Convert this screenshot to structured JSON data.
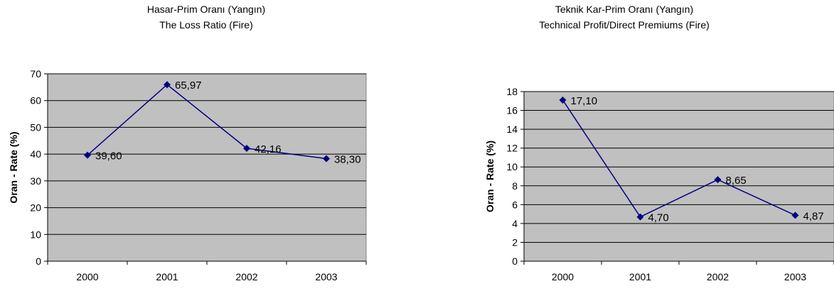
{
  "chart_data": [
    {
      "type": "line",
      "title": "Hasar-Prim Oranı (Yangın)",
      "subtitle": "The Loss Ratio (Fire)",
      "ylabel": "Oran - Rate (%)",
      "xlabel": "",
      "categories": [
        "2000",
        "2001",
        "2002",
        "2003"
      ],
      "yticks": [
        "0",
        "10",
        "20",
        "30",
        "40",
        "50",
        "60",
        "70"
      ],
      "ylim": [
        0,
        70
      ],
      "grid": true,
      "series": [
        {
          "values": [
            39.6,
            65.97,
            42.16,
            38.3
          ],
          "labels": [
            "39,60",
            "65,97",
            "42,16",
            "38,30"
          ]
        }
      ],
      "colors": {
        "plot_bg": "#c0c0c0",
        "line": "#000080",
        "grid": "#000000"
      }
    },
    {
      "type": "line",
      "title": "Teknik Kar-Prim Oranı (Yangın)",
      "subtitle": "Technical Profit/Direct Premiums (Fire)",
      "ylabel": "Oran - Rate (%)",
      "xlabel": "",
      "categories": [
        "2000",
        "2001",
        "2002",
        "2003"
      ],
      "yticks": [
        "0",
        "2",
        "4",
        "6",
        "8",
        "10",
        "12",
        "14",
        "16",
        "18"
      ],
      "ylim": [
        0,
        18
      ],
      "grid": true,
      "series": [
        {
          "values": [
            17.1,
            4.7,
            8.65,
            4.87
          ],
          "labels": [
            "17,10",
            "4,70",
            "8,65",
            "4,87"
          ]
        }
      ],
      "colors": {
        "plot_bg": "#c0c0c0",
        "line": "#000080",
        "grid": "#000000"
      }
    }
  ]
}
